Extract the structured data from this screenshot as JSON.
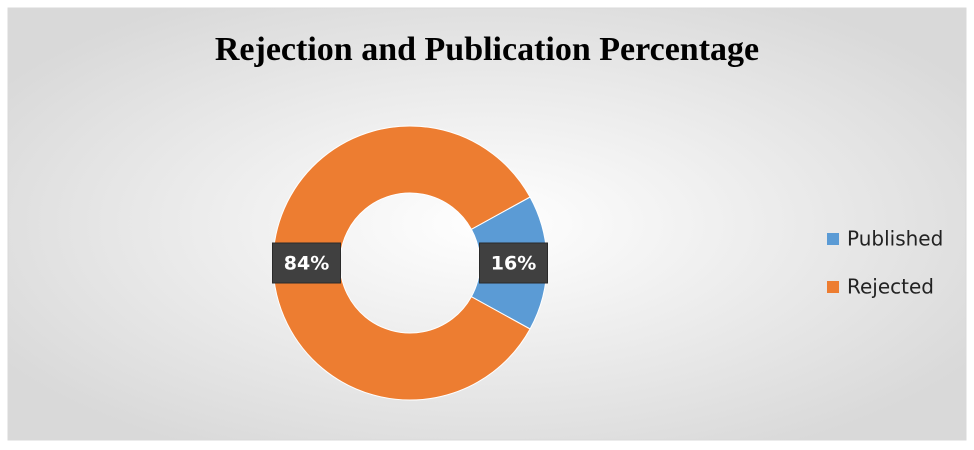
{
  "chart_data": {
    "type": "donut",
    "title": "Rejection and Publication Percentage",
    "categories": [
      "Published",
      "Rejected"
    ],
    "values": [
      16,
      84
    ],
    "value_labels": [
      "16%",
      "84%"
    ],
    "colors": [
      "#5b9bd5",
      "#ed7d31"
    ],
    "legend": "right"
  }
}
